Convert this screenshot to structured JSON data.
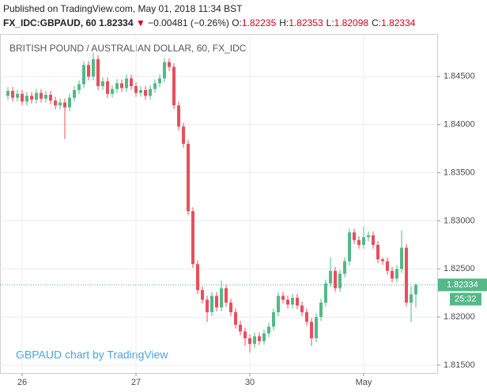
{
  "header": {
    "published": "Published on TradingView.com, May 01, 2018 11:34 BST",
    "symbol": "FX_IDC:GBPAUD, 60",
    "last": "1.82334",
    "arrow": "▼",
    "change": "−0.00481 (−0.26%)",
    "ohlc": [
      {
        "label": "O:",
        "value": "1.82235"
      },
      {
        "label": "H:",
        "value": "1.82353"
      },
      {
        "label": "L:",
        "value": "1.82098"
      },
      {
        "label": "C:",
        "value": "1.82334"
      }
    ]
  },
  "chart_data": {
    "type": "candlestick",
    "title": "BRITISH POUND / AUSTRALIAN DOLLAR, 60, FX_IDC",
    "watermark": "GBPAUD chart by TradingView",
    "up_color": "#53b987",
    "down_color": "#eb4d5c",
    "grid": true,
    "xlim": [
      -1.667,
      90.5
    ],
    "xticks": [
      {
        "value": 3,
        "label": "26"
      },
      {
        "value": 27,
        "label": "27"
      },
      {
        "value": 51,
        "label": "30"
      },
      {
        "value": 75,
        "label": "May"
      }
    ],
    "ylim": [
      1.81418,
      1.84934
    ],
    "yticks": [
      {
        "value": 1.815,
        "label": "1.81500"
      },
      {
        "value": 1.82,
        "label": "1.82000"
      },
      {
        "value": 1.825,
        "label": "1.82500"
      },
      {
        "value": 1.83,
        "label": "1.83000"
      },
      {
        "value": 1.835,
        "label": "1.83500"
      },
      {
        "value": 1.84,
        "label": "1.84000"
      },
      {
        "value": 1.845,
        "label": "1.84500"
      }
    ],
    "price_label": "1.82334",
    "countdown": "25:32",
    "open": [
      1.843,
      1.8435,
      1.8428,
      1.8432,
      1.8424,
      1.843,
      1.8426,
      1.8433,
      1.8427,
      1.8431,
      1.8425,
      1.842,
      1.8423,
      1.8418,
      1.8428,
      1.8436,
      1.8442,
      1.8462,
      1.845,
      1.8468,
      1.844,
      1.8445,
      1.8432,
      1.8437,
      1.8443,
      1.8438,
      1.8448,
      1.844,
      1.8433,
      1.8436,
      1.843,
      1.8437,
      1.8443,
      1.8448,
      1.8465,
      1.846,
      1.842,
      1.8398,
      1.838,
      1.831,
      1.8255,
      1.8228,
      1.8218,
      1.8205,
      1.8222,
      1.821,
      1.823,
      1.8215,
      1.8205,
      1.8192,
      1.8185,
      1.8178,
      1.8172,
      1.818,
      1.8175,
      1.8183,
      1.819,
      1.8205,
      1.8222,
      1.8218,
      1.8213,
      1.822,
      1.8212,
      1.8205,
      1.8195,
      1.8178,
      1.82,
      1.8215,
      1.8235,
      1.8248,
      1.823,
      1.8245,
      1.8258,
      1.8288,
      1.828,
      1.8275,
      1.8283,
      1.8285,
      1.8275,
      1.826,
      1.8258,
      1.8248,
      1.824,
      1.825,
      1.8272,
      1.8215,
      1.82235
    ],
    "high": [
      1.8439,
      1.8439,
      1.8436,
      1.8436,
      1.8434,
      1.8434,
      1.8437,
      1.8437,
      1.8435,
      1.8435,
      1.8429,
      1.8427,
      1.8427,
      1.8432,
      1.844,
      1.8446,
      1.8466,
      1.8466,
      1.8475,
      1.8472,
      1.8449,
      1.8449,
      1.8441,
      1.8447,
      1.8447,
      1.8452,
      1.8452,
      1.8444,
      1.844,
      1.844,
      1.8441,
      1.8447,
      1.8452,
      1.8469,
      1.8469,
      1.8464,
      1.8424,
      1.8402,
      1.8384,
      1.8314,
      1.8259,
      1.8232,
      1.8222,
      1.8226,
      1.8226,
      1.8238,
      1.8234,
      1.8219,
      1.8209,
      1.8196,
      1.8189,
      1.8182,
      1.8184,
      1.8184,
      1.8187,
      1.8194,
      1.8209,
      1.8226,
      1.8226,
      1.8222,
      1.8224,
      1.8224,
      1.8216,
      1.8209,
      1.8199,
      1.8204,
      1.8219,
      1.8239,
      1.8262,
      1.8252,
      1.8249,
      1.8262,
      1.8292,
      1.8292,
      1.8284,
      1.8294,
      1.8289,
      1.8289,
      1.8279,
      1.8262,
      1.8262,
      1.8252,
      1.8254,
      1.829,
      1.8276,
      1.8232,
      1.82353
    ],
    "low": [
      1.8426,
      1.8424,
      1.8424,
      1.842,
      1.842,
      1.8422,
      1.8422,
      1.8423,
      1.8423,
      1.8421,
      1.8416,
      1.8416,
      1.8385,
      1.8414,
      1.8424,
      1.8432,
      1.8438,
      1.8446,
      1.8446,
      1.8436,
      1.8436,
      1.8428,
      1.8428,
      1.8433,
      1.8434,
      1.8434,
      1.8436,
      1.8429,
      1.8429,
      1.8426,
      1.8426,
      1.8433,
      1.8439,
      1.8444,
      1.8456,
      1.8416,
      1.8394,
      1.8376,
      1.8306,
      1.8251,
      1.8224,
      1.8214,
      1.8195,
      1.8201,
      1.8206,
      1.8206,
      1.8211,
      1.8201,
      1.8188,
      1.8181,
      1.817,
      1.8163,
      1.8168,
      1.8171,
      1.8171,
      1.8179,
      1.8186,
      1.8201,
      1.8214,
      1.8209,
      1.8209,
      1.8208,
      1.8201,
      1.8191,
      1.817,
      1.8174,
      1.8196,
      1.8211,
      1.8231,
      1.8226,
      1.8226,
      1.8241,
      1.8254,
      1.8276,
      1.8271,
      1.8271,
      1.8279,
      1.8271,
      1.8256,
      1.8254,
      1.8244,
      1.8236,
      1.8236,
      1.8246,
      1.8211,
      1.8195,
      1.82098
    ],
    "close": [
      1.8435,
      1.8428,
      1.8432,
      1.8424,
      1.843,
      1.8426,
      1.8433,
      1.8427,
      1.8431,
      1.8425,
      1.842,
      1.8423,
      1.8418,
      1.8428,
      1.8436,
      1.8442,
      1.8462,
      1.845,
      1.8468,
      1.844,
      1.8445,
      1.8432,
      1.8437,
      1.8443,
      1.8438,
      1.8448,
      1.844,
      1.8433,
      1.8436,
      1.843,
      1.8437,
      1.8443,
      1.8448,
      1.8465,
      1.846,
      1.842,
      1.8398,
      1.838,
      1.831,
      1.8255,
      1.8228,
      1.8218,
      1.8205,
      1.8222,
      1.821,
      1.823,
      1.8215,
      1.8205,
      1.8192,
      1.8185,
      1.8178,
      1.8172,
      1.818,
      1.8175,
      1.8183,
      1.819,
      1.8205,
      1.8222,
      1.8218,
      1.8213,
      1.822,
      1.8212,
      1.8205,
      1.8195,
      1.8178,
      1.82,
      1.8215,
      1.8235,
      1.8248,
      1.823,
      1.8245,
      1.8258,
      1.8288,
      1.828,
      1.8275,
      1.8283,
      1.8285,
      1.8275,
      1.826,
      1.8258,
      1.8248,
      1.824,
      1.825,
      1.8272,
      1.8215,
      1.82235,
      1.82334
    ]
  }
}
